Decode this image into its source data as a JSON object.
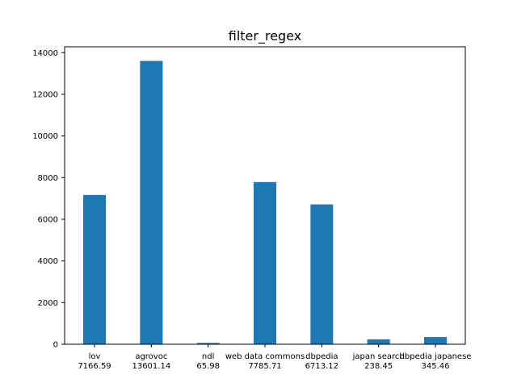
{
  "chart_data": {
    "type": "bar",
    "title": "filter_regex",
    "xlabel": "",
    "ylabel": "",
    "categories": [
      "lov",
      "agrovoc",
      "ndl",
      "web data commons",
      "dbpedia",
      "japan search",
      "dbpedia japanese"
    ],
    "values": [
      7166.59,
      13601.14,
      65.98,
      7785.71,
      6713.12,
      238.45,
      345.46
    ],
    "value_labels": [
      "7166.59",
      "13601.14",
      "65.98",
      "7785.71",
      "6713.12",
      "238.45",
      "345.46"
    ],
    "yticks": [
      0,
      2000,
      4000,
      6000,
      8000,
      10000,
      12000,
      14000
    ],
    "ytick_labels": [
      "0",
      "2000",
      "4000",
      "6000",
      "8000",
      "10000",
      "12000",
      "14000"
    ],
    "ylim": [
      0,
      14281.2
    ],
    "grid": false,
    "bar_color": "#1f77b4"
  }
}
